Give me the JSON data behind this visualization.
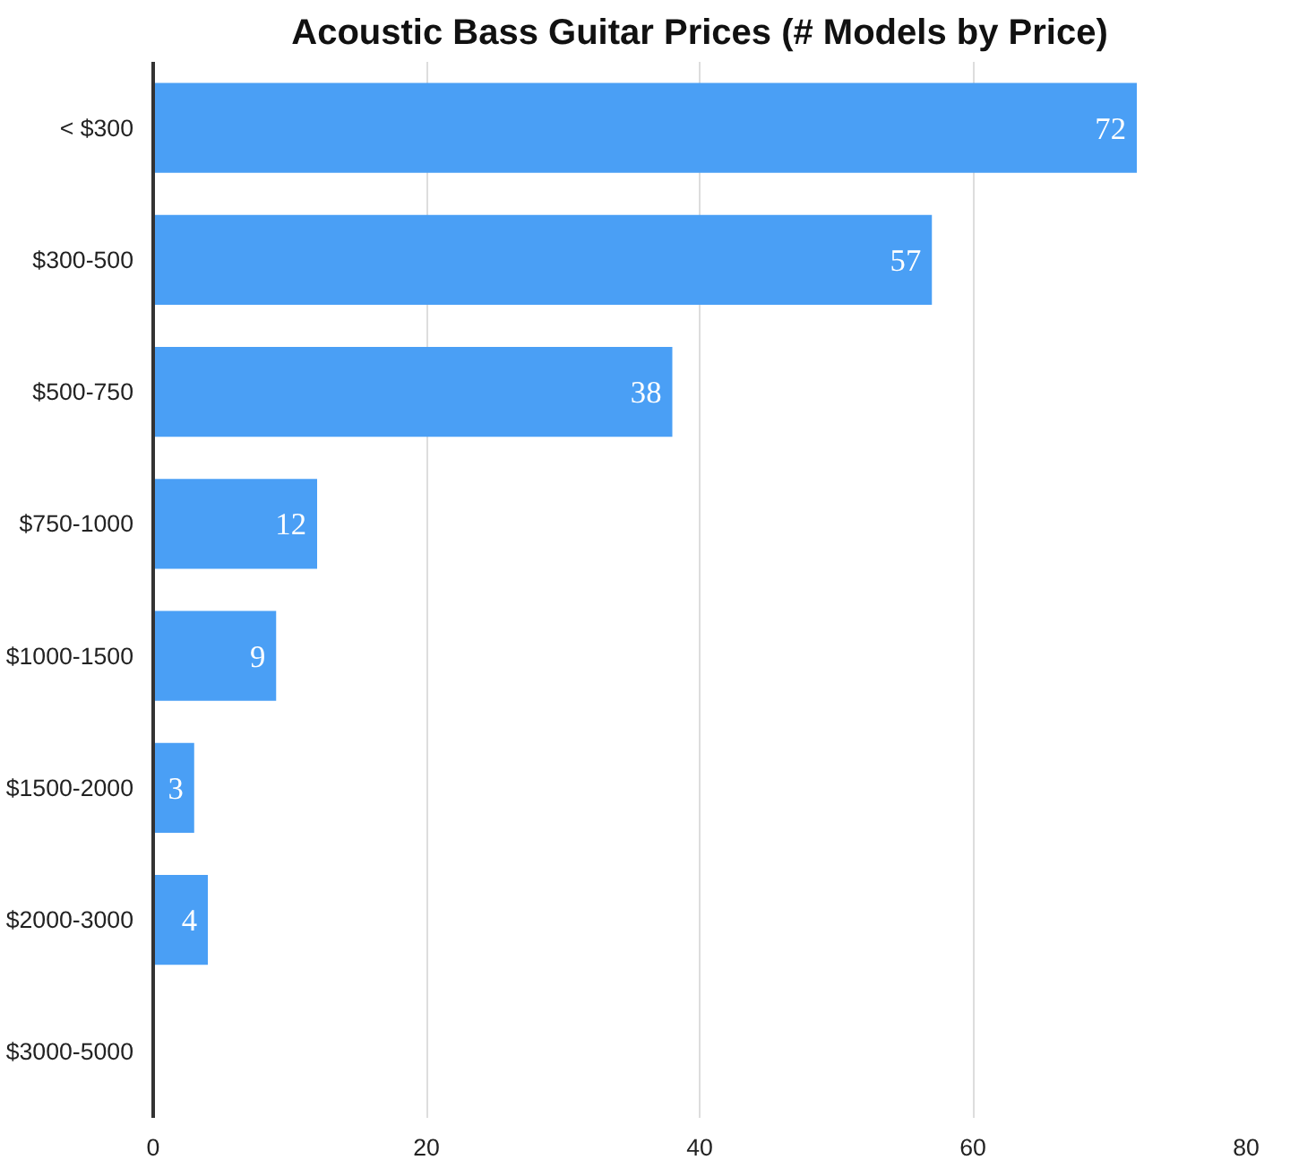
{
  "chart_data": {
    "type": "bar",
    "orientation": "horizontal",
    "title": "Acoustic Bass Guitar Prices (# Models by Price)",
    "categories": [
      "< $300",
      "$300-500",
      "$500-750",
      "$750-1000",
      "$1000-1500",
      "$1500-2000",
      "$2000-3000",
      "$3000-5000"
    ],
    "values": [
      72,
      57,
      38,
      12,
      9,
      3,
      4,
      0
    ],
    "value_labels": [
      "72",
      "57",
      "38",
      "12",
      "9",
      "3",
      "4",
      null
    ],
    "color": "#4a9ff5",
    "xlim": [
      0,
      80
    ],
    "xticks": [
      0,
      20,
      40,
      60,
      80
    ],
    "grid": "x"
  }
}
